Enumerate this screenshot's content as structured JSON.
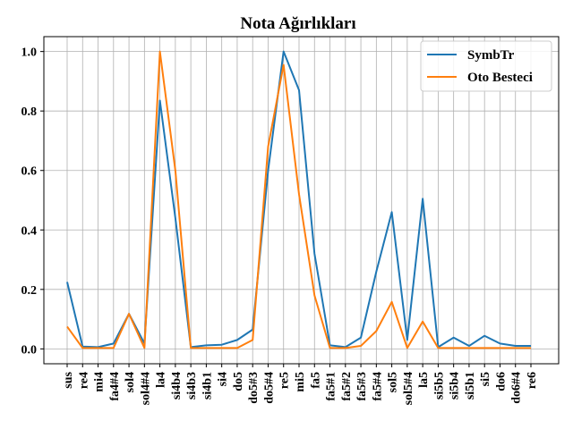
{
  "chart_data": {
    "type": "line",
    "title": "Nota Ağırlıkları",
    "xlabel": "",
    "ylabel": "",
    "ylim": [
      -0.05,
      1.05
    ],
    "yticks": [
      "0.0",
      "0.2",
      "0.4",
      "0.6",
      "0.8",
      "1.0"
    ],
    "grid": true,
    "legend_position": "top-right",
    "categories": [
      "sus",
      "re4",
      "mi4",
      "fa4#4",
      "sol4",
      "sol4#4",
      "la4",
      "si4b4",
      "si4b3",
      "si4b1",
      "si4",
      "do5",
      "do5#3",
      "do5#4",
      "re5",
      "mi5",
      "fa5",
      "fa5#1",
      "fa5#2",
      "fa5#3",
      "fa5#4",
      "sol5",
      "sol5#4",
      "la5",
      "si5b5",
      "si5b4",
      "si5b1",
      "si5",
      "do6",
      "do6#4",
      "re6"
    ],
    "series": [
      {
        "name": "SymbTr",
        "color": "#1f77b4",
        "values": [
          0.225,
          0.008,
          0.006,
          0.018,
          0.118,
          0.018,
          0.835,
          0.44,
          0.006,
          0.012,
          0.014,
          0.03,
          0.065,
          0.6,
          1.0,
          0.87,
          0.32,
          0.012,
          0.006,
          0.038,
          0.26,
          0.46,
          0.03,
          0.505,
          0.006,
          0.038,
          0.01,
          0.044,
          0.018,
          0.01,
          0.01
        ]
      },
      {
        "name": "Oto Besteci",
        "color": "#ff7f0e",
        "values": [
          0.075,
          0.003,
          0.003,
          0.003,
          0.118,
          0.003,
          1.0,
          0.6,
          0.003,
          0.003,
          0.003,
          0.003,
          0.03,
          0.68,
          0.955,
          0.52,
          0.18,
          0.003,
          0.003,
          0.01,
          0.06,
          0.158,
          0.003,
          0.092,
          0.003,
          0.003,
          0.003,
          0.003,
          0.003,
          0.003,
          0.003
        ]
      }
    ]
  }
}
